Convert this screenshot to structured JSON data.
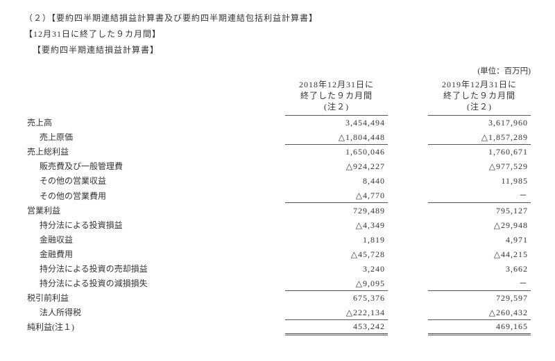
{
  "headings": {
    "h1": "（２）【要約四半期連結損益計算書及び要約四半期連結包括利益計算書】",
    "h2": "【12月31日に終了した９カ月間】",
    "h3": "【要約四半期連結損益計算書】"
  },
  "unit_label": "(単位：百万円)",
  "col_headers": {
    "c1_l1": "2018年12月31日に",
    "c1_l2": "終了した９カ月間",
    "c1_l3": "(注２)",
    "c2_l1": "2019年12月31日に",
    "c2_l2": "終了した９カ月間",
    "c2_l3": "(注２)"
  },
  "rows": {
    "sales": {
      "label": "売上高",
      "v1": "3,454,494",
      "v2": "3,617,960"
    },
    "cogs": {
      "label": "売上原価",
      "v1": "△1,804,448",
      "v2": "△1,857,289"
    },
    "gross": {
      "label": "売上総利益",
      "v1": "1,650,046",
      "v2": "1,760,671"
    },
    "sga": {
      "label": "販売費及び一般管理費",
      "v1": "△924,227",
      "v2": "△977,529"
    },
    "other_inc": {
      "label": "その他の営業収益",
      "v1": "8,440",
      "v2": "11,985"
    },
    "other_exp": {
      "label": "その他の営業費用",
      "v1": "△4,770",
      "v2": "－"
    },
    "op": {
      "label": "営業利益",
      "v1": "729,489",
      "v2": "795,127"
    },
    "equity_pl": {
      "label": "持分法による投資損益",
      "v1": "△4,349",
      "v2": "△29,948"
    },
    "fin_inc": {
      "label": "金融収益",
      "v1": "1,819",
      "v2": "4,971"
    },
    "fin_exp": {
      "label": "金融費用",
      "v1": "△45,728",
      "v2": "△44,215"
    },
    "equity_disp": {
      "label": "持分法による投資の売却損益",
      "v1": "3,240",
      "v2": "3,662"
    },
    "equity_imp": {
      "label": "持分法による投資の減損損失",
      "v1": "△9,095",
      "v2": "－"
    },
    "pretax": {
      "label": "税引前利益",
      "v1": "675,376",
      "v2": "729,597"
    },
    "tax": {
      "label": "法人所得税",
      "v1": "△222,134",
      "v2": "△260,432"
    },
    "net": {
      "label": "純利益(注１)",
      "v1": "453,242",
      "v2": "469,165"
    }
  }
}
